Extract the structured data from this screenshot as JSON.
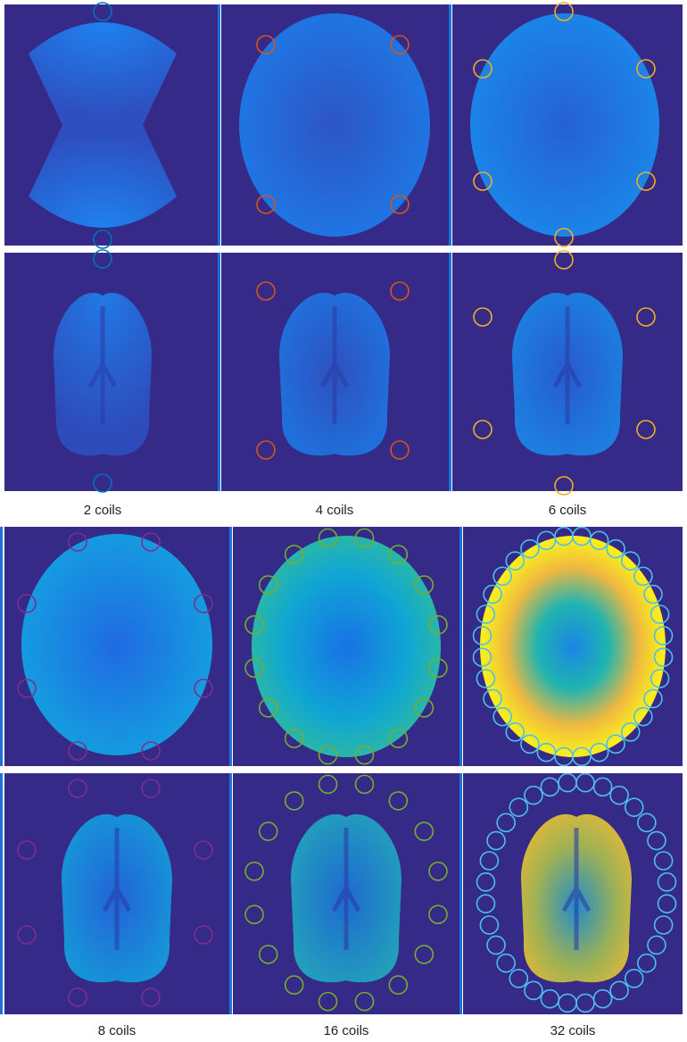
{
  "captions": {
    "top": [
      "2 coils",
      "4 coils",
      "6 coils"
    ],
    "bottom": [
      "8 coils",
      "16 coils",
      "32 coils"
    ]
  }
}
